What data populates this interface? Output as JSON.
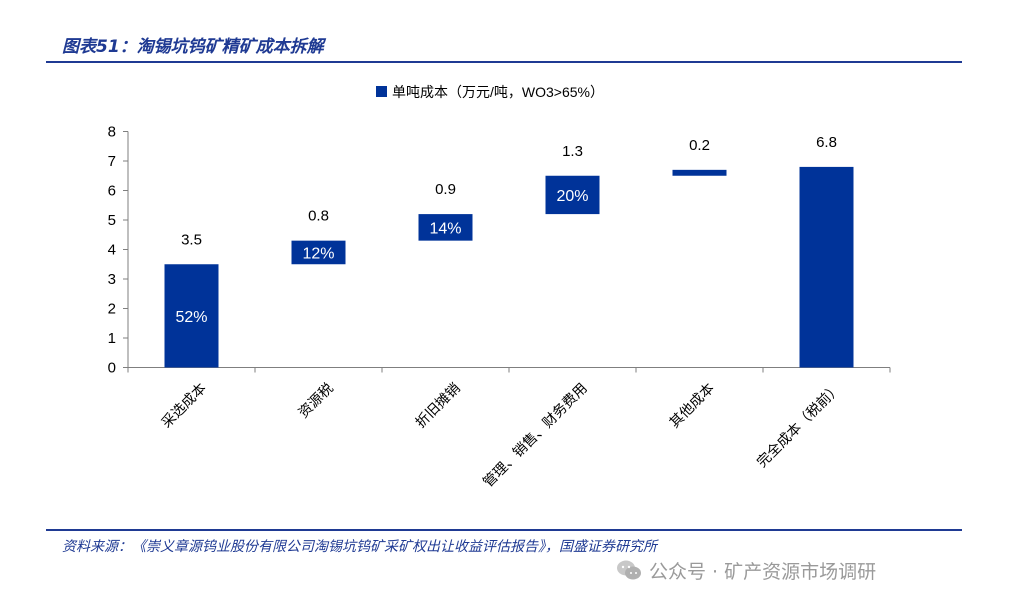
{
  "figure": {
    "title": "图表51：淘锡坑钨矿精矿成本拆解",
    "source": "资料来源：《崇义章源钨业股份有限公司淘锡坑钨矿采矿权出让收益评估报告》，国盛证券研究所",
    "watermark": "公众号 · 矿产资源市场调研"
  },
  "colors": {
    "bar": "#003399",
    "accent": "#1f3a93",
    "axis": "#7f7f7f",
    "text": "#000000"
  },
  "chart_data": {
    "type": "waterfall",
    "title": "",
    "legend": "单吨成本（万元/吨，WO3>65%）",
    "legend_position": "top-center",
    "categories": [
      "采选成本",
      "资源税",
      "折旧摊销",
      "管理、销售、财务费用",
      "其他成本",
      "完全成本（税前）"
    ],
    "values": [
      3.5,
      0.8,
      0.9,
      1.3,
      0.2,
      6.8
    ],
    "bases": [
      0,
      3.5,
      4.3,
      5.2,
      6.5,
      0
    ],
    "value_labels": [
      "3.5",
      "0.8",
      "0.9",
      "1.3",
      "0.2",
      "6.8"
    ],
    "share_labels": [
      "52%",
      "12%",
      "14%",
      "20%",
      "",
      ""
    ],
    "ylim": [
      0,
      8
    ],
    "yticks": [
      0,
      1,
      2,
      3,
      4,
      5,
      6,
      7,
      8
    ],
    "xlabel": "",
    "ylabel": "",
    "grid": false
  }
}
